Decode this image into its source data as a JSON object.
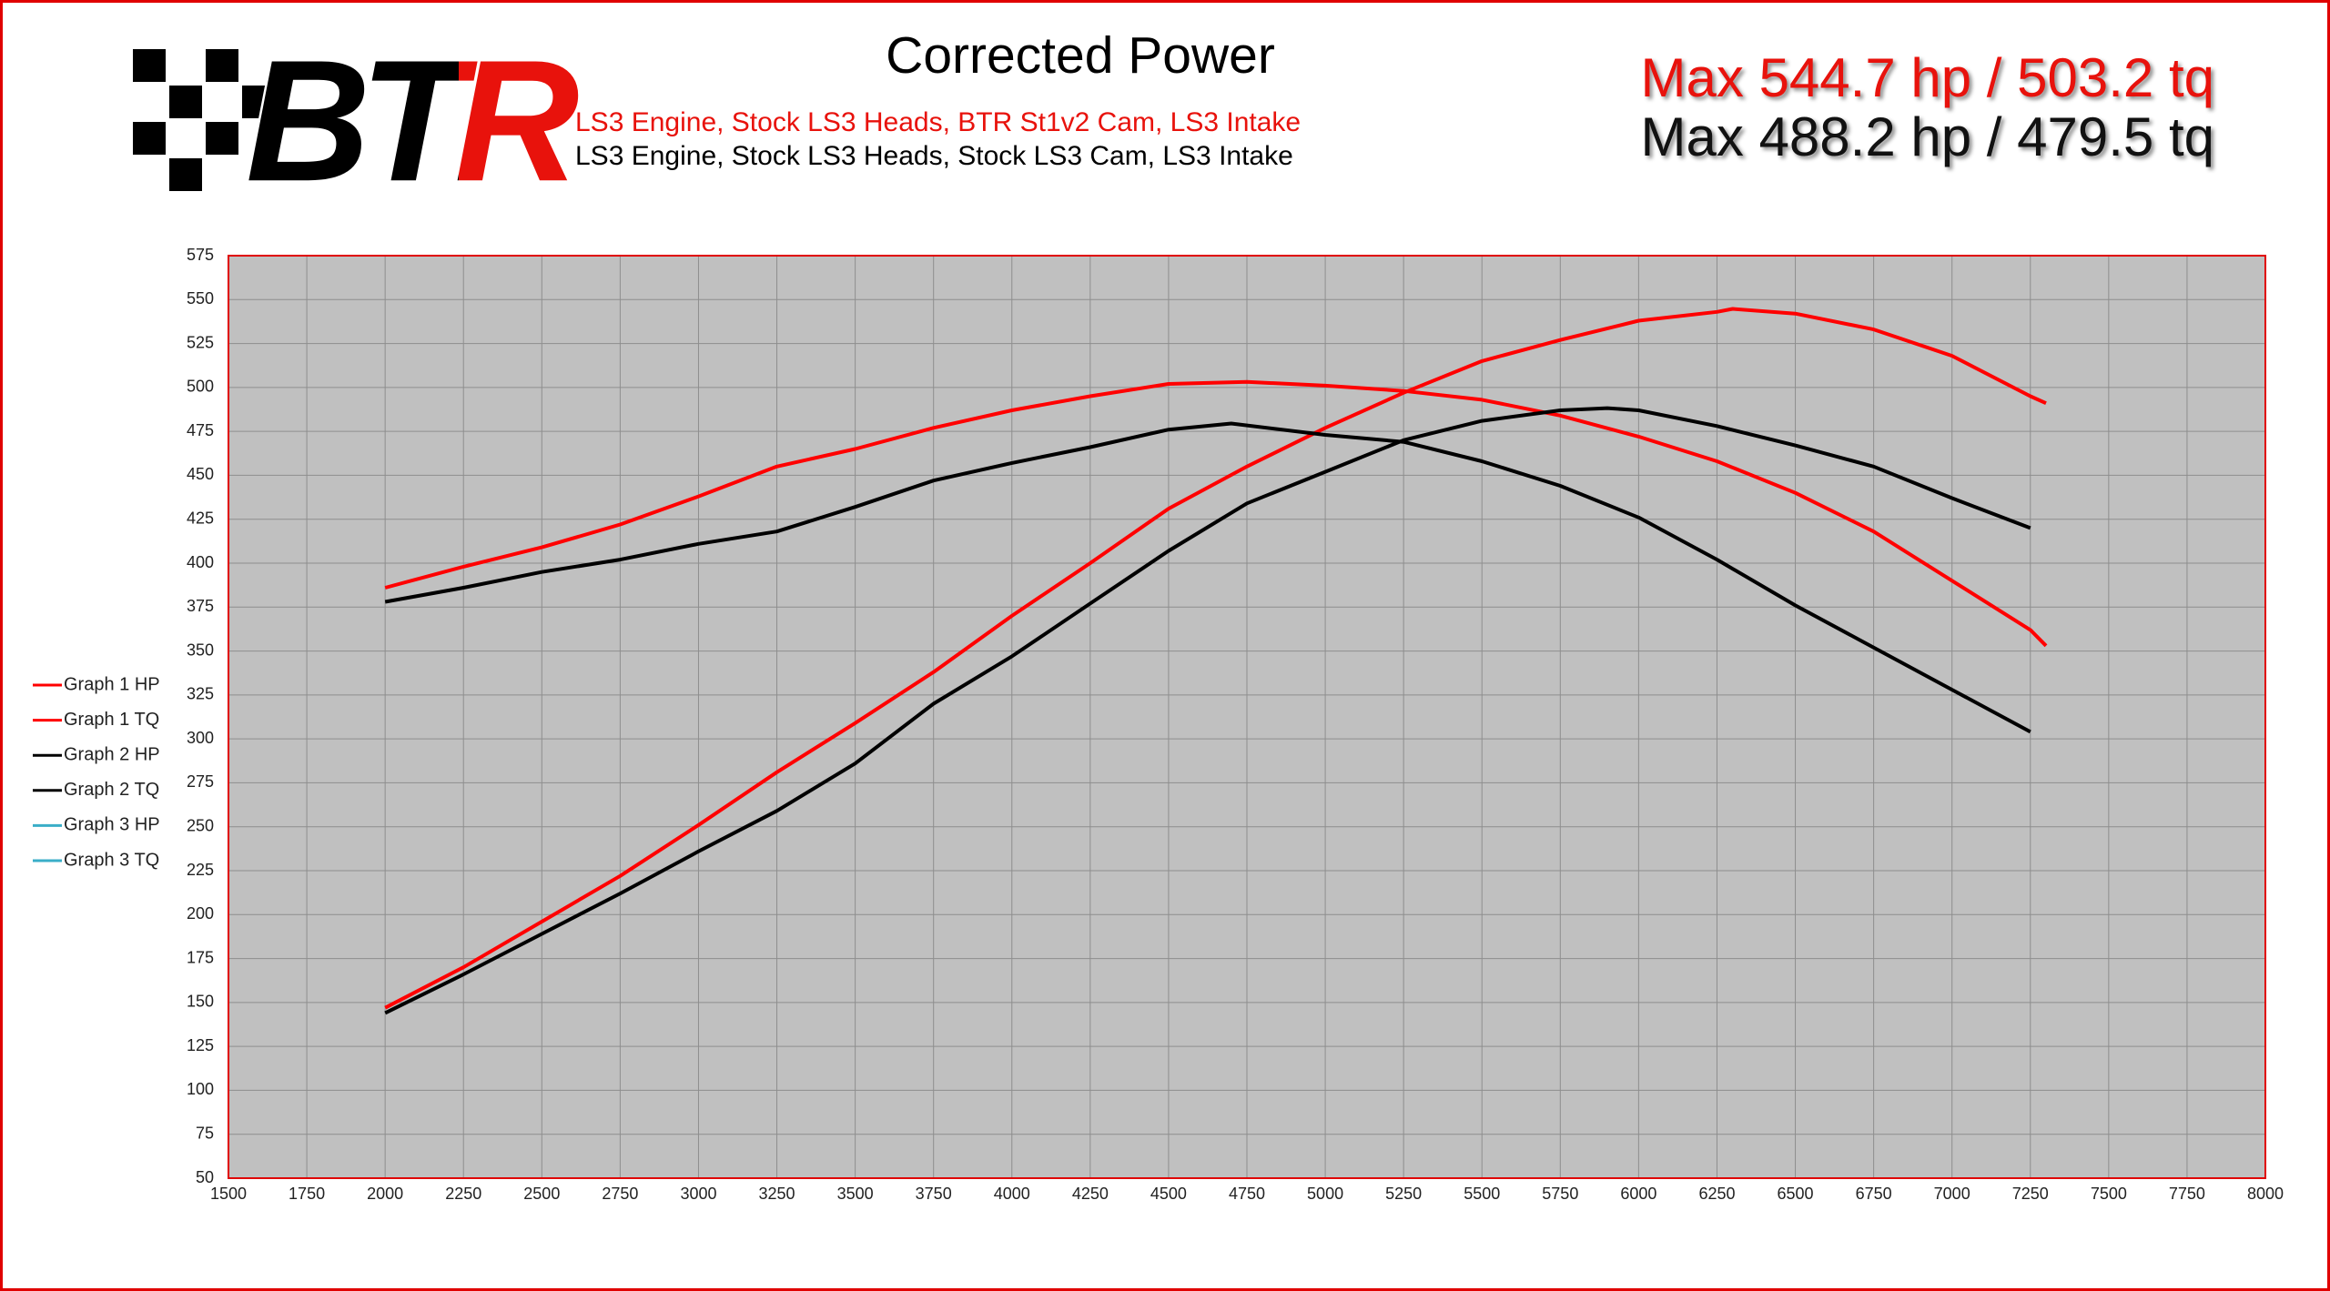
{
  "logo": "BTR",
  "chart_data": {
    "type": "line",
    "title": "Corrected Power",
    "subtitles": [
      {
        "text": "LS3 Engine, Stock LS3 Heads, BTR St1v2 Cam, LS3 Intake",
        "color": "#e8120c"
      },
      {
        "text": "LS3 Engine, Stock LS3 Heads, Stock LS3 Cam, LS3 Intake",
        "color": "#000000"
      }
    ],
    "annotations": [
      {
        "text": "Max 544.7 hp / 503.2 tq",
        "color": "#e8120c"
      },
      {
        "text": "Max 488.2 hp / 479.5 tq",
        "color": "#111111"
      }
    ],
    "xlim": [
      1500,
      8000
    ],
    "xticks": [
      1500,
      1750,
      2000,
      2250,
      2500,
      2750,
      3000,
      3250,
      3500,
      3750,
      4000,
      4250,
      4500,
      4750,
      5000,
      5250,
      5500,
      5750,
      6000,
      6250,
      6500,
      6750,
      7000,
      7250,
      7500,
      7750,
      8000
    ],
    "ylim": [
      50,
      575
    ],
    "yticks": [
      50,
      75,
      100,
      125,
      150,
      175,
      200,
      225,
      250,
      275,
      300,
      325,
      350,
      375,
      400,
      425,
      450,
      475,
      500,
      525,
      550,
      575
    ],
    "grid": true,
    "legend": "left",
    "series": [
      {
        "name": "Graph 1 HP",
        "color": "#ff0000",
        "x": [
          2000,
          2250,
          2500,
          2750,
          3000,
          3250,
          3500,
          3750,
          4000,
          4250,
          4500,
          4750,
          5000,
          5250,
          5500,
          5750,
          6000,
          6250,
          6300,
          6500,
          6750,
          7000,
          7250,
          7300
        ],
        "values": [
          147,
          170,
          196,
          222,
          251,
          281,
          309,
          338,
          370,
          400,
          431,
          455,
          477,
          497,
          515,
          527,
          538,
          543,
          544.7,
          542,
          533,
          518,
          495,
          491
        ]
      },
      {
        "name": "Graph 1 TQ",
        "color": "#ff0000",
        "x": [
          2000,
          2250,
          2500,
          2750,
          3000,
          3250,
          3500,
          3750,
          4000,
          4250,
          4500,
          4750,
          5000,
          5250,
          5500,
          5750,
          6000,
          6250,
          6500,
          6750,
          7000,
          7250,
          7300
        ],
        "values": [
          386,
          398,
          409,
          422,
          438,
          455,
          465,
          477,
          487,
          495,
          502,
          503.2,
          501,
          498,
          493,
          484,
          472,
          458,
          440,
          418,
          390,
          362,
          353
        ]
      },
      {
        "name": "Graph 2 HP",
        "color": "#000000",
        "x": [
          2000,
          2250,
          2500,
          2750,
          3000,
          3250,
          3500,
          3750,
          4000,
          4250,
          4500,
          4750,
          5000,
          5250,
          5500,
          5750,
          5900,
          6000,
          6250,
          6500,
          6750,
          7000,
          7250
        ],
        "values": [
          144,
          166,
          189,
          212,
          236,
          259,
          286,
          320,
          347,
          377,
          407,
          434,
          452,
          470,
          481,
          487,
          488.2,
          487,
          478,
          467,
          455,
          437,
          420
        ]
      },
      {
        "name": "Graph 2 TQ",
        "color": "#000000",
        "x": [
          2000,
          2250,
          2500,
          2750,
          3000,
          3250,
          3500,
          3750,
          4000,
          4250,
          4500,
          4700,
          5000,
          5250,
          5500,
          5750,
          6000,
          6250,
          6500,
          6750,
          7000,
          7250
        ],
        "values": [
          378,
          386,
          395,
          402,
          411,
          418,
          432,
          447,
          457,
          466,
          476,
          479.5,
          473,
          469,
          458,
          444,
          426,
          402,
          376,
          352,
          328,
          304
        ]
      },
      {
        "name": "Graph 3 HP",
        "color": "#3aaec8",
        "x": [],
        "values": []
      },
      {
        "name": "Graph 3 TQ",
        "color": "#3aaec8",
        "x": [],
        "values": []
      }
    ]
  }
}
